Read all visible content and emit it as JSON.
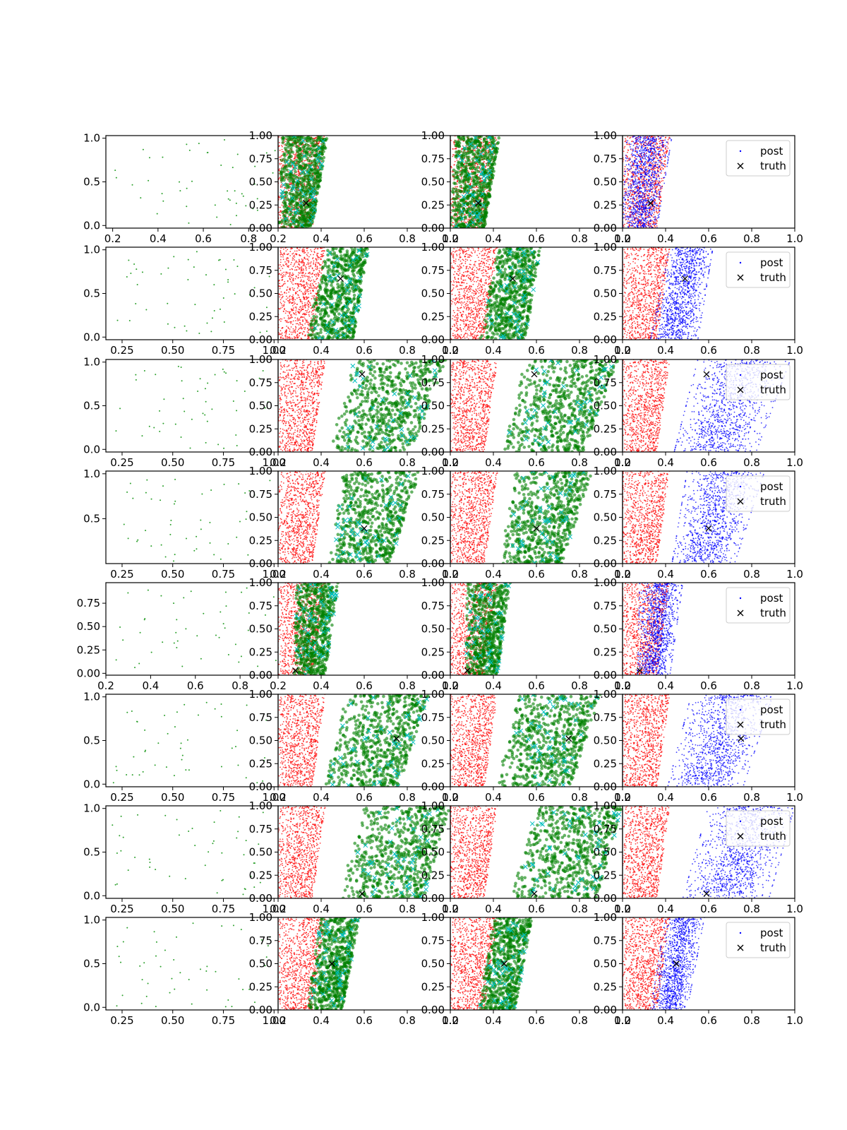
{
  "chart_data": {
    "type": "scatter",
    "grid": false,
    "layout": {
      "rows": 8,
      "cols": 4
    },
    "colors": {
      "prior": "#2ca02c",
      "region_red": "#ff0000",
      "region_green": "#008000",
      "marker_cyan": "#00bfbf",
      "post": "#0000ff",
      "truth": "#000000"
    },
    "legend": {
      "placement": "upper right",
      "entries": [
        "post",
        "truth"
      ]
    },
    "shared": {
      "xlim": [
        0.2,
        1.0
      ],
      "ylim": [
        0.0,
        1.0
      ],
      "xticks": [
        "0.2",
        "0.4",
        "0.6",
        "0.8",
        "1.0"
      ],
      "yticks": [
        "0.00",
        "0.25",
        "0.50",
        "0.75",
        "1.00"
      ]
    },
    "red_band": {
      "x_at_y0": [
        0.2,
        0.36
      ],
      "x_at_y1": [
        0.2,
        0.42
      ]
    },
    "rows": [
      {
        "prior_xlim": [
          0.17,
          0.93
        ],
        "prior_ylim": [
          -0.03,
          1.03
        ],
        "prior_xticks": [
          "0.2",
          "0.4",
          "0.6",
          "0.8"
        ],
        "prior_yticks": [
          "0.0",
          "0.5",
          "1.0"
        ],
        "truth": [
          0.33,
          0.27
        ],
        "band_x_at_y0": [
          0.2,
          0.36
        ],
        "band_x_at_y1": [
          0.22,
          0.43
        ]
      },
      {
        "prior_xlim": [
          0.17,
          1.02
        ],
        "prior_ylim": [
          -0.03,
          1.03
        ],
        "prior_xticks": [
          "0.25",
          "0.50",
          "0.75",
          "1.00"
        ],
        "prior_yticks": [
          "0.0",
          "0.5",
          "1.0"
        ],
        "truth": [
          0.49,
          0.66
        ],
        "band_x_at_y0": [
          0.33,
          0.55
        ],
        "band_x_at_y1": [
          0.42,
          0.62
        ]
      },
      {
        "prior_xlim": [
          0.17,
          1.02
        ],
        "prior_ylim": [
          -0.03,
          1.03
        ],
        "prior_xticks": [
          "0.25",
          "0.50",
          "0.75",
          "1.00"
        ],
        "prior_yticks": [
          "0.0",
          "0.5",
          "1.0"
        ],
        "truth": [
          0.59,
          0.84
        ],
        "band_x_at_y0": [
          0.44,
          0.82
        ],
        "band_x_at_y1": [
          0.55,
          0.98
        ]
      },
      {
        "prior_xlim": [
          0.17,
          1.02
        ],
        "prior_ylim": [
          0.0,
          1.03
        ],
        "prior_xticks": [
          "0.25",
          "0.50",
          "0.75",
          "1.00"
        ],
        "prior_yticks": [
          "0.5",
          "1.0"
        ],
        "truth": [
          0.6,
          0.38
        ],
        "band_x_at_y0": [
          0.43,
          0.72
        ],
        "band_x_at_y1": [
          0.5,
          0.86
        ]
      },
      {
        "prior_xlim": [
          0.2,
          0.97
        ],
        "prior_ylim": [
          -0.02,
          0.97
        ],
        "prior_xticks": [
          "0.2",
          "0.4",
          "0.6",
          "0.8"
        ],
        "prior_yticks": [
          "0.00",
          "0.25",
          "0.50",
          "0.75"
        ],
        "truth": [
          0.28,
          0.05
        ],
        "band_x_at_y0": [
          0.27,
          0.42
        ],
        "band_x_at_y1": [
          0.28,
          0.48
        ]
      },
      {
        "prior_xlim": [
          0.17,
          1.02
        ],
        "prior_ylim": [
          -0.03,
          1.03
        ],
        "prior_xticks": [
          "0.25",
          "0.50",
          "0.75",
          "1.00"
        ],
        "prior_yticks": [
          "0.0",
          "0.5",
          "1.0"
        ],
        "truth": [
          0.75,
          0.52
        ],
        "band_x_at_y0": [
          0.41,
          0.76
        ],
        "band_x_at_y1": [
          0.52,
          0.9
        ]
      },
      {
        "prior_xlim": [
          0.17,
          1.02
        ],
        "prior_ylim": [
          -0.03,
          1.03
        ],
        "prior_xticks": [
          "0.25",
          "0.50",
          "0.75",
          "1.00"
        ],
        "prior_yticks": [
          "0.0",
          "0.5",
          "1.0"
        ],
        "truth": [
          0.59,
          0.05
        ],
        "band_x_at_y0": [
          0.48,
          0.88
        ],
        "band_x_at_y1": [
          0.6,
          1.0
        ]
      },
      {
        "prior_xlim": [
          0.17,
          1.02
        ],
        "prior_ylim": [
          -0.03,
          1.03
        ],
        "prior_xticks": [
          "0.25",
          "0.50",
          "0.75",
          "1.00"
        ],
        "prior_yticks": [
          "0.0",
          "0.5",
          "1.0"
        ],
        "truth": [
          0.45,
          0.5
        ],
        "band_x_at_y0": [
          0.33,
          0.5
        ],
        "band_x_at_y1": [
          0.4,
          0.58
        ]
      }
    ]
  }
}
